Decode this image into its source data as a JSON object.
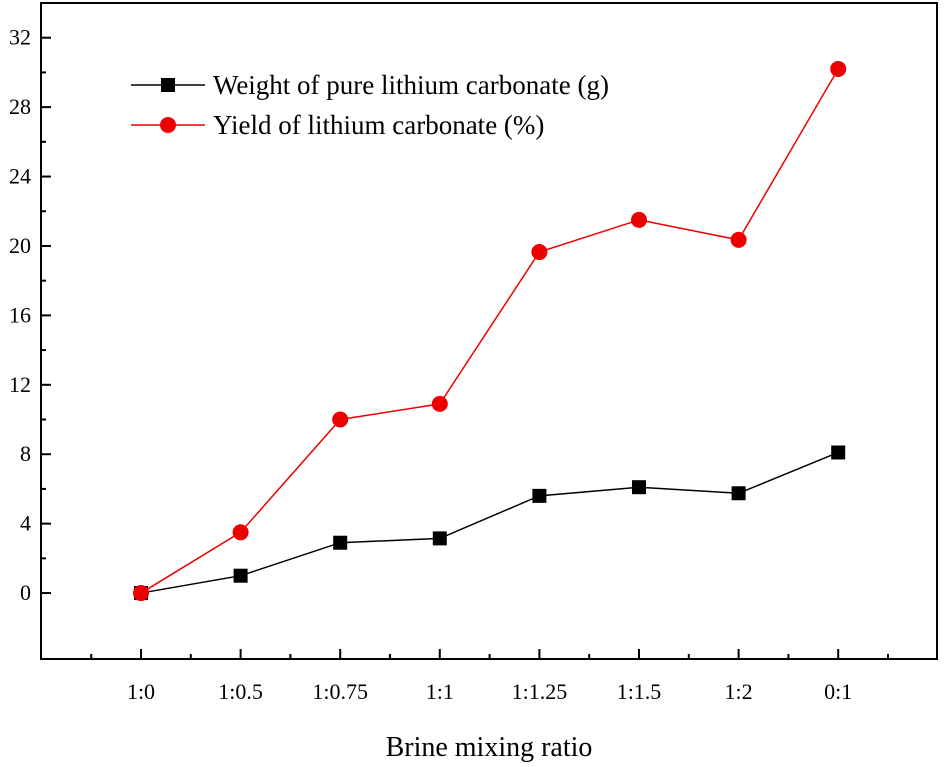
{
  "chart_data": {
    "type": "line",
    "title": "",
    "xlabel": "Brine mixing ratio",
    "ylabel": "",
    "categories": [
      "1:0",
      "1:0.5",
      "1:0.75",
      "1:1",
      "1:1.25",
      "1:1.5",
      "1:2",
      "0:1"
    ],
    "ylim": [
      -3.8,
      34
    ],
    "yticks": [
      0,
      4,
      8,
      12,
      16,
      20,
      24,
      28,
      32
    ],
    "grid": false,
    "legend_position": "top-left",
    "series": [
      {
        "name": "Weight of pure lithium carbonate (g)",
        "marker": "square",
        "color": "#000000",
        "values": [
          0.0,
          1.0,
          2.9,
          3.15,
          5.6,
          6.1,
          5.75,
          8.1
        ]
      },
      {
        "name": "Yield of lithium carbonate (%)",
        "marker": "circle",
        "color": "#ee0000",
        "values": [
          0.0,
          3.5,
          10.0,
          10.9,
          19.65,
          21.5,
          20.35,
          30.2
        ]
      }
    ]
  }
}
